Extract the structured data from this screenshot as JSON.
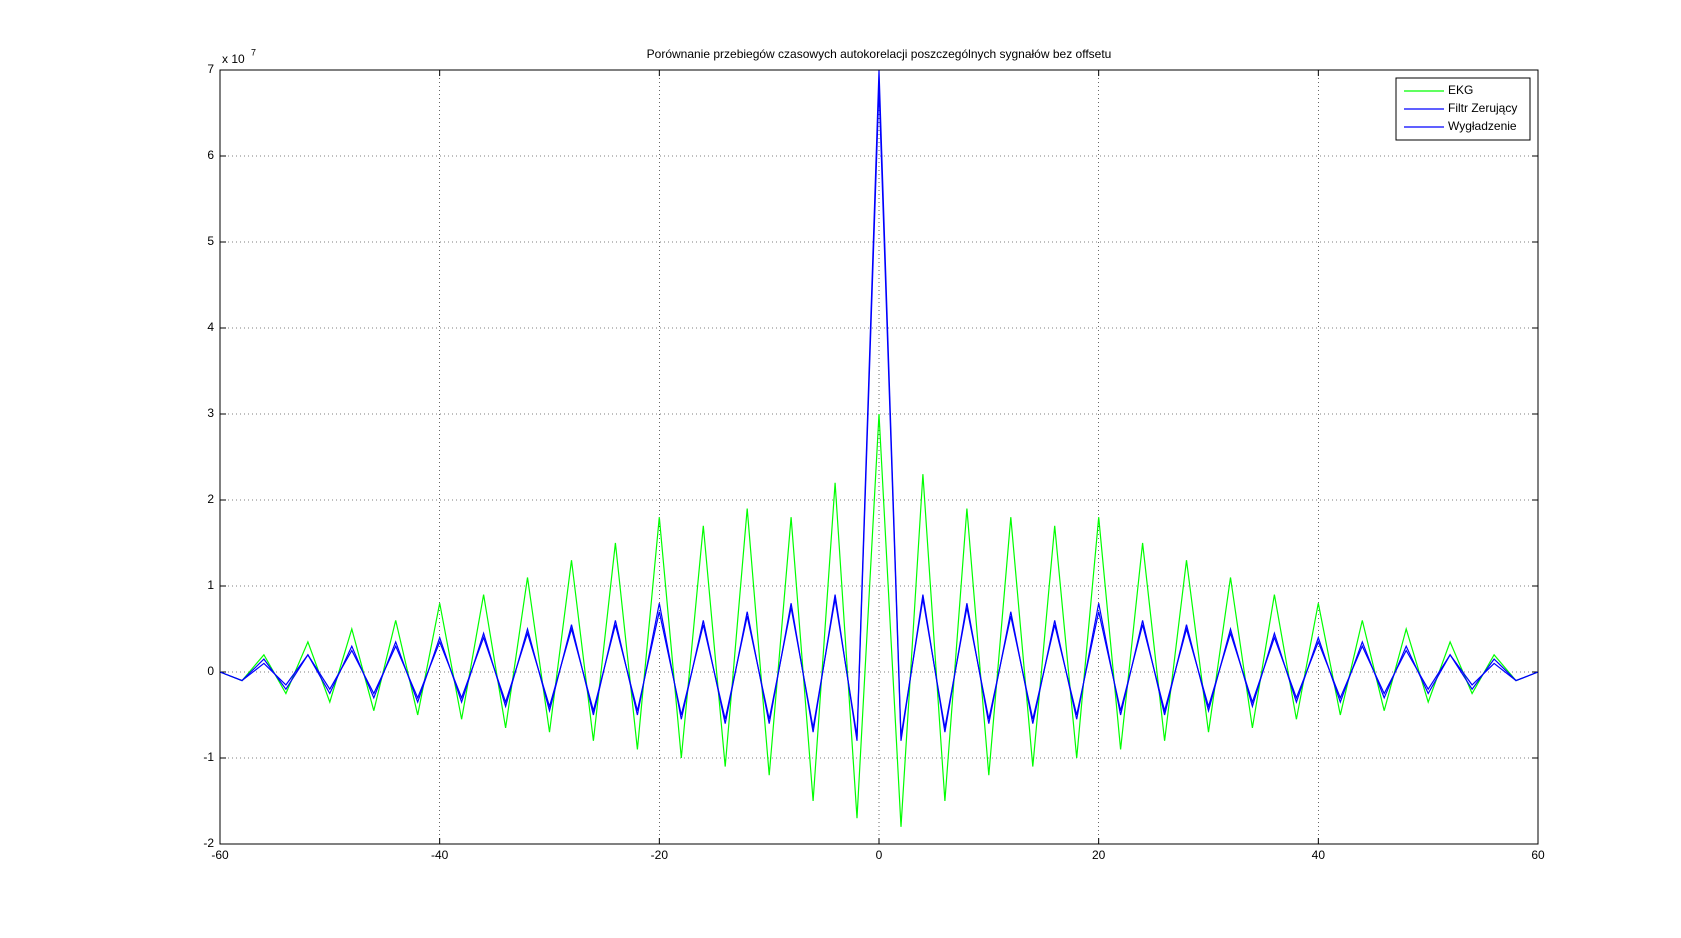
{
  "chart_data": {
    "type": "line",
    "title": "Porównanie przebiegów czasowych autokorelacji poszczególnych sygnałów bez offsetu",
    "y_multiplier": "x 10",
    "y_exponent": "7",
    "x": [
      -60,
      -58,
      -56,
      -54,
      -52,
      -50,
      -48,
      -46,
      -44,
      -42,
      -40,
      -38,
      -36,
      -34,
      -32,
      -30,
      -28,
      -26,
      -24,
      -22,
      -20,
      -18,
      -16,
      -14,
      -12,
      -10,
      -8,
      -6,
      -4,
      -2,
      0,
      2,
      4,
      6,
      8,
      10,
      12,
      14,
      16,
      18,
      20,
      22,
      24,
      26,
      28,
      30,
      32,
      34,
      36,
      38,
      40,
      42,
      44,
      46,
      48,
      50,
      52,
      54,
      56,
      58,
      60
    ],
    "series": [
      {
        "name": "EKG",
        "color": "#00ff00",
        "values": [
          0,
          -0.1,
          0.2,
          -0.25,
          0.35,
          -0.35,
          0.5,
          -0.45,
          0.6,
          -0.5,
          0.8,
          -0.55,
          0.9,
          -0.65,
          1.1,
          -0.7,
          1.3,
          -0.8,
          1.5,
          -0.9,
          1.8,
          -1.0,
          1.7,
          -1.1,
          1.9,
          -1.2,
          1.8,
          -1.5,
          2.2,
          -1.7,
          3.0,
          -1.8,
          2.3,
          -1.5,
          1.9,
          -1.2,
          1.8,
          -1.1,
          1.7,
          -1.0,
          1.8,
          -0.9,
          1.5,
          -0.8,
          1.3,
          -0.7,
          1.1,
          -0.65,
          0.9,
          -0.55,
          0.8,
          -0.5,
          0.6,
          -0.45,
          0.5,
          -0.35,
          0.35,
          -0.25,
          0.2,
          -0.1,
          0
        ]
      },
      {
        "name": "Filtr Zerujący",
        "color": "#0000ff",
        "values": [
          0,
          -0.1,
          0.1,
          -0.15,
          0.2,
          -0.2,
          0.25,
          -0.25,
          0.3,
          -0.3,
          0.35,
          -0.3,
          0.4,
          -0.35,
          0.45,
          -0.4,
          0.5,
          -0.45,
          0.55,
          -0.45,
          0.7,
          -0.5,
          0.55,
          -0.55,
          0.65,
          -0.55,
          0.75,
          -0.65,
          0.85,
          -0.75,
          7.0,
          -0.75,
          0.85,
          -0.65,
          0.75,
          -0.55,
          0.65,
          -0.55,
          0.55,
          -0.5,
          0.7,
          -0.45,
          0.55,
          -0.45,
          0.5,
          -0.4,
          0.45,
          -0.35,
          0.4,
          -0.3,
          0.35,
          -0.3,
          0.3,
          -0.25,
          0.25,
          -0.2,
          0.2,
          -0.15,
          0.1,
          -0.1,
          0
        ]
      },
      {
        "name": "Wygładzenie",
        "color": "#0000ff",
        "values": [
          0,
          -0.1,
          0.15,
          -0.2,
          0.2,
          -0.25,
          0.3,
          -0.3,
          0.35,
          -0.35,
          0.4,
          -0.35,
          0.45,
          -0.4,
          0.5,
          -0.45,
          0.55,
          -0.5,
          0.6,
          -0.5,
          0.8,
          -0.55,
          0.6,
          -0.6,
          0.7,
          -0.6,
          0.8,
          -0.7,
          0.9,
          -0.8,
          6.8,
          -0.8,
          0.9,
          -0.7,
          0.8,
          -0.6,
          0.7,
          -0.6,
          0.6,
          -0.55,
          0.8,
          -0.5,
          0.6,
          -0.5,
          0.55,
          -0.45,
          0.5,
          -0.4,
          0.45,
          -0.35,
          0.4,
          -0.35,
          0.35,
          -0.3,
          0.3,
          -0.25,
          0.2,
          -0.2,
          0.15,
          -0.1,
          0
        ]
      }
    ],
    "xlim": [
      -60,
      60
    ],
    "xticks": [
      -60,
      -40,
      -20,
      0,
      20,
      40,
      60
    ],
    "ylim": [
      -2,
      7
    ],
    "yticks": [
      -2,
      -1,
      0,
      1,
      2,
      3,
      4,
      5,
      6,
      7
    ],
    "grid": true,
    "legend": "northeast"
  }
}
